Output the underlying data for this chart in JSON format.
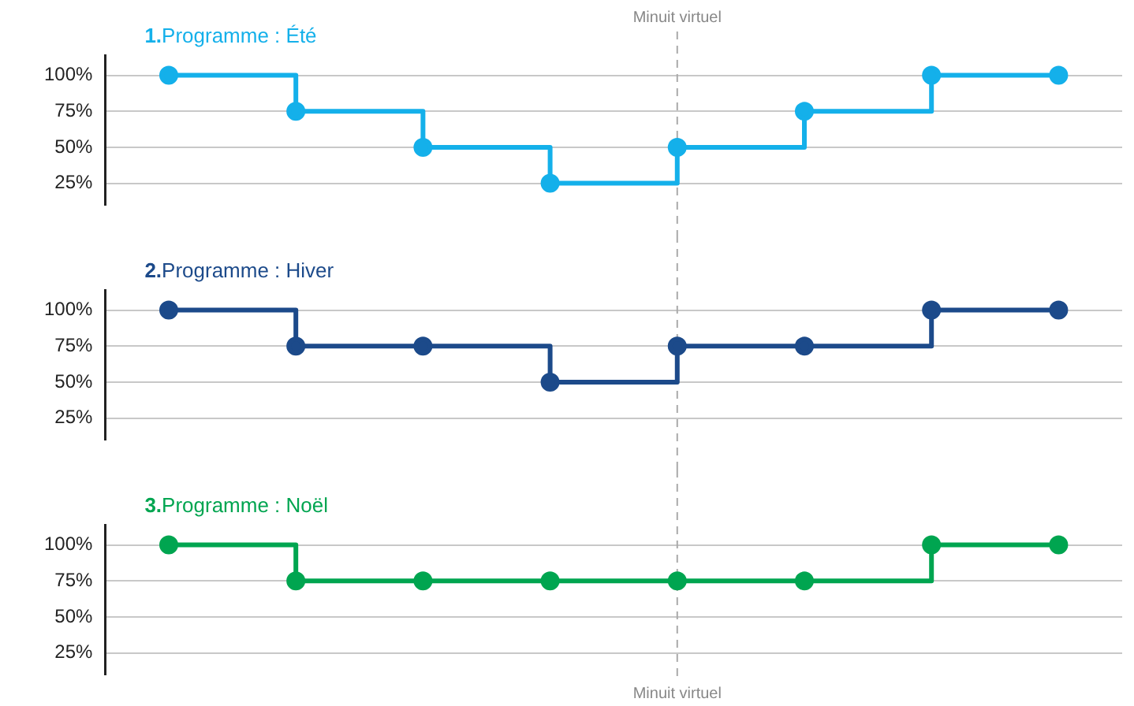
{
  "chart_data": [
    {
      "type": "step",
      "title": "1.Programme : Été",
      "categories": [
        null,
        null,
        null,
        null,
        null,
        null,
        null,
        null
      ],
      "ylim": [
        10,
        114
      ],
      "yticks": [
        {
          "value": 25,
          "label": "25%"
        },
        {
          "value": 50,
          "label": "50%"
        },
        {
          "value": 75,
          "label": "75%"
        },
        {
          "value": 100,
          "label": "100%"
        }
      ],
      "tick_labels": "y",
      "grid": "y",
      "marker": "circle",
      "line_style": "solid",
      "series": [
        {
          "color": "#14b0ea",
          "values": [
            100,
            75,
            50,
            25,
            50,
            75,
            100,
            100
          ]
        }
      ],
      "annotations": [
        "Minuit virtuel"
      ]
    },
    {
      "type": "step",
      "title": "2.Programme : Hiver",
      "categories": [
        null,
        null,
        null,
        null,
        null,
        null,
        null,
        null
      ],
      "ylim": [
        10,
        114
      ],
      "yticks": [
        {
          "value": 25,
          "label": "25%"
        },
        {
          "value": 50,
          "label": "50%"
        },
        {
          "value": 75,
          "label": "75%"
        },
        {
          "value": 100,
          "label": "100%"
        }
      ],
      "tick_labels": "y",
      "grid": "y",
      "marker": "circle",
      "line_style": "solid",
      "series": [
        {
          "color": "#1c4a8a",
          "values": [
            100,
            75,
            75,
            50,
            75,
            75,
            100,
            100
          ]
        }
      ]
    },
    {
      "type": "step",
      "title": "3.Programme : Noël",
      "categories": [
        null,
        null,
        null,
        null,
        null,
        null,
        null,
        null
      ],
      "ylim": [
        10,
        114
      ],
      "yticks": [
        {
          "value": 25,
          "label": "25%"
        },
        {
          "value": 50,
          "label": "50%"
        },
        {
          "value": 75,
          "label": "75%"
        },
        {
          "value": 100,
          "label": "100%"
        }
      ],
      "tick_labels": "y",
      "grid": "y",
      "marker": "circle",
      "line_style": "solid",
      "series": [
        {
          "color": "#00a550",
          "values": [
            100,
            75,
            75,
            75,
            75,
            75,
            100,
            100
          ]
        }
      ],
      "annotations": [
        "Minuit virtuel"
      ]
    }
  ]
}
